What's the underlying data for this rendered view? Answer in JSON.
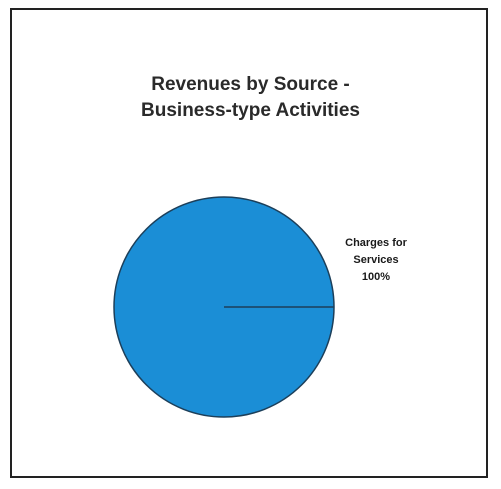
{
  "chart_data": {
    "type": "pie",
    "title": [
      "Revenues by Source -",
      "Business-type Activities"
    ],
    "slices": [
      {
        "label": [
          "Charges for",
          "Services",
          "100%"
        ],
        "value": 100,
        "color": "#1b8ed6"
      }
    ],
    "legend": "none"
  }
}
